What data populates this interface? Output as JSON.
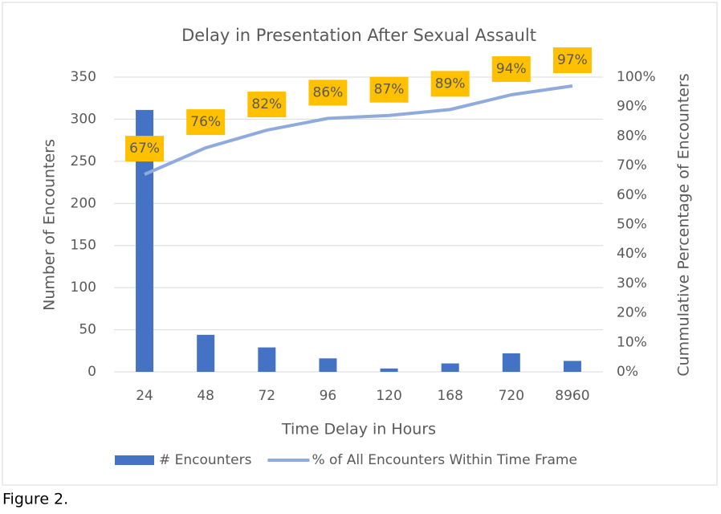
{
  "chart_data": {
    "type": "bar",
    "title": "Delay in Presentation After Sexual Assault",
    "x_label": "Time Delay in Hours",
    "y_label": "Number of Encounters",
    "y2_label": "Cummulative Percentage of Encounters",
    "categories": [
      "24",
      "48",
      "72",
      "96",
      "120",
      "168",
      "720",
      "8960"
    ],
    "series": [
      {
        "name": "# Encounters",
        "type": "bar",
        "color": "#4472c4",
        "values": [
          311,
          44,
          29,
          16,
          4,
          10,
          22,
          13
        ]
      },
      {
        "name": "% of All Encounters Within Time Frame",
        "type": "line",
        "axis": "y2",
        "color": "#8faadc",
        "values": [
          67,
          76,
          82,
          86,
          87,
          89,
          94,
          97
        ],
        "value_labels": [
          "67%",
          "76%",
          "82%",
          "86%",
          "87%",
          "89%",
          "94%",
          "97%"
        ],
        "label_color": "#ffc000"
      }
    ],
    "ylim": [
      0,
      350
    ],
    "yticks": [
      0,
      50,
      100,
      150,
      200,
      250,
      300,
      350
    ],
    "y2lim": [
      0,
      100
    ],
    "y2ticks": [
      {
        "value": 0,
        "label": "0%"
      },
      {
        "value": 10,
        "label": "10%"
      },
      {
        "value": 20,
        "label": "20%"
      },
      {
        "value": 30,
        "label": "30%"
      },
      {
        "value": 40,
        "label": "40%"
      },
      {
        "value": 50,
        "label": "50%"
      },
      {
        "value": 60,
        "label": "60%"
      },
      {
        "value": 70,
        "label": "70%"
      },
      {
        "value": 80,
        "label": "80%"
      },
      {
        "value": 90,
        "label": "90%"
      },
      {
        "value": 100,
        "label": "100%"
      }
    ],
    "grid": true,
    "legend": "bottom",
    "caption": "Figure 2."
  }
}
